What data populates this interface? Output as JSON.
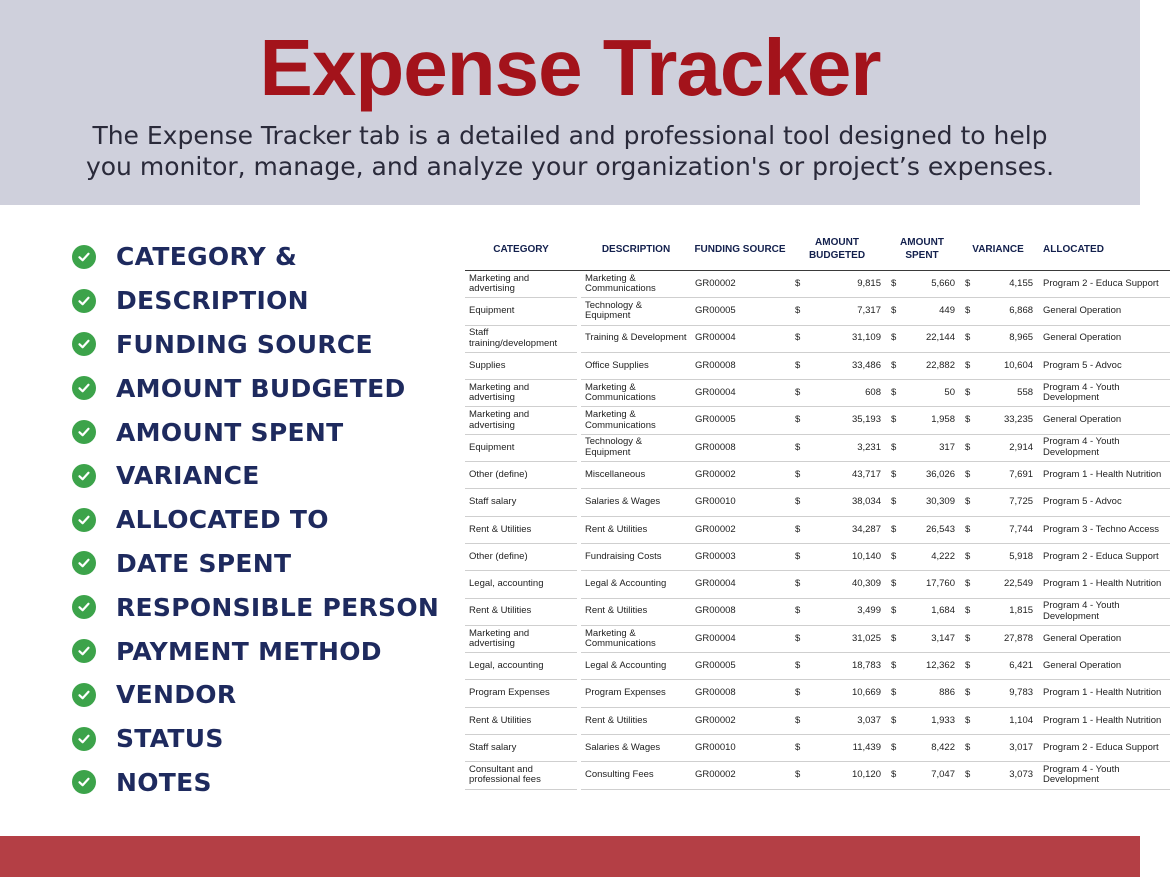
{
  "header": {
    "title": "Expense Tracker",
    "subtitle": "The Expense Tracker tab is a detailed and professional tool designed to help you monitor, manage, and analyze your organization's or project’s expenses."
  },
  "colors": {
    "header_bg": "#cfd0dc",
    "title": "#a3131b",
    "check": "#3ca34a",
    "feature_text": "#1e2a5e",
    "footer": "#b43f45"
  },
  "features": [
    "CATEGORY &",
    "DESCRIPTION",
    "FUNDING SOURCE",
    "AMOUNT BUDGETED",
    "AMOUNT SPENT",
    "VARIANCE",
    "ALLOCATED TO",
    "DATE SPENT",
    "RESPONSIBLE PERSON",
    "PAYMENT METHOD",
    "VENDOR",
    "STATUS",
    "NOTES"
  ],
  "table": {
    "columns": [
      "CATEGORY",
      "DESCRIPTION",
      "FUNDING SOURCE",
      "AMOUNT BUDGETED",
      "AMOUNT SPENT",
      "VARIANCE",
      "ALLOCATED"
    ],
    "currency": "$",
    "rows": [
      {
        "category": "Marketing and advertising",
        "description": "Marketing & Communications",
        "funding": "GR00002",
        "budgeted": "9,815",
        "spent": "5,660",
        "variance": "4,155",
        "allocated": "Program 2 - Educa Support"
      },
      {
        "category": "Equipment",
        "description": "Technology & Equipment",
        "funding": "GR00005",
        "budgeted": "7,317",
        "spent": "449",
        "variance": "6,868",
        "allocated": "General Operation"
      },
      {
        "category": "Staff training/development",
        "description": "Training & Development",
        "funding": "GR00004",
        "budgeted": "31,109",
        "spent": "22,144",
        "variance": "8,965",
        "allocated": "General Operation"
      },
      {
        "category": "Supplies",
        "description": "Office Supplies",
        "funding": "GR00008",
        "budgeted": "33,486",
        "spent": "22,882",
        "variance": "10,604",
        "allocated": "Program 5 - Advoc"
      },
      {
        "category": "Marketing and advertising",
        "description": "Marketing & Communications",
        "funding": "GR00004",
        "budgeted": "608",
        "spent": "50",
        "variance": "558",
        "allocated": "Program 4 - Youth Development"
      },
      {
        "category": "Marketing and advertising",
        "description": "Marketing & Communications",
        "funding": "GR00005",
        "budgeted": "35,193",
        "spent": "1,958",
        "variance": "33,235",
        "allocated": "General Operation"
      },
      {
        "category": "Equipment",
        "description": "Technology & Equipment",
        "funding": "GR00008",
        "budgeted": "3,231",
        "spent": "317",
        "variance": "2,914",
        "allocated": "Program 4 - Youth Development"
      },
      {
        "category": "Other (define)",
        "description": "Miscellaneous",
        "funding": "GR00002",
        "budgeted": "43,717",
        "spent": "36,026",
        "variance": "7,691",
        "allocated": "Program 1 - Health Nutrition"
      },
      {
        "category": "Staff salary",
        "description": "Salaries & Wages",
        "funding": "GR00010",
        "budgeted": "38,034",
        "spent": "30,309",
        "variance": "7,725",
        "allocated": "Program 5 - Advoc"
      },
      {
        "category": "Rent & Utilities",
        "description": "Rent & Utilities",
        "funding": "GR00002",
        "budgeted": "34,287",
        "spent": "26,543",
        "variance": "7,744",
        "allocated": "Program 3 - Techno Access"
      },
      {
        "category": "Other (define)",
        "description": "Fundraising Costs",
        "funding": "GR00003",
        "budgeted": "10,140",
        "spent": "4,222",
        "variance": "5,918",
        "allocated": "Program 2 - Educa Support"
      },
      {
        "category": "Legal, accounting",
        "description": "Legal & Accounting",
        "funding": "GR00004",
        "budgeted": "40,309",
        "spent": "17,760",
        "variance": "22,549",
        "allocated": "Program 1 - Health Nutrition"
      },
      {
        "category": "Rent & Utilities",
        "description": "Rent & Utilities",
        "funding": "GR00008",
        "budgeted": "3,499",
        "spent": "1,684",
        "variance": "1,815",
        "allocated": "Program 4 - Youth Development"
      },
      {
        "category": "Marketing and advertising",
        "description": "Marketing & Communications",
        "funding": "GR00004",
        "budgeted": "31,025",
        "spent": "3,147",
        "variance": "27,878",
        "allocated": "General Operation"
      },
      {
        "category": "Legal, accounting",
        "description": "Legal & Accounting",
        "funding": "GR00005",
        "budgeted": "18,783",
        "spent": "12,362",
        "variance": "6,421",
        "allocated": "General Operation"
      },
      {
        "category": "Program Expenses",
        "description": "Program Expenses",
        "funding": "GR00008",
        "budgeted": "10,669",
        "spent": "886",
        "variance": "9,783",
        "allocated": "Program 1 - Health Nutrition"
      },
      {
        "category": "Rent & Utilities",
        "description": "Rent & Utilities",
        "funding": "GR00002",
        "budgeted": "3,037",
        "spent": "1,933",
        "variance": "1,104",
        "allocated": "Program 1 - Health Nutrition"
      },
      {
        "category": "Staff salary",
        "description": "Salaries & Wages",
        "funding": "GR00010",
        "budgeted": "11,439",
        "spent": "8,422",
        "variance": "3,017",
        "allocated": "Program 2 - Educa Support"
      },
      {
        "category": "Consultant and professional fees",
        "description": "Consulting Fees",
        "funding": "GR00002",
        "budgeted": "10,120",
        "spent": "7,047",
        "variance": "3,073",
        "allocated": "Program 4 - Youth Development"
      }
    ]
  }
}
